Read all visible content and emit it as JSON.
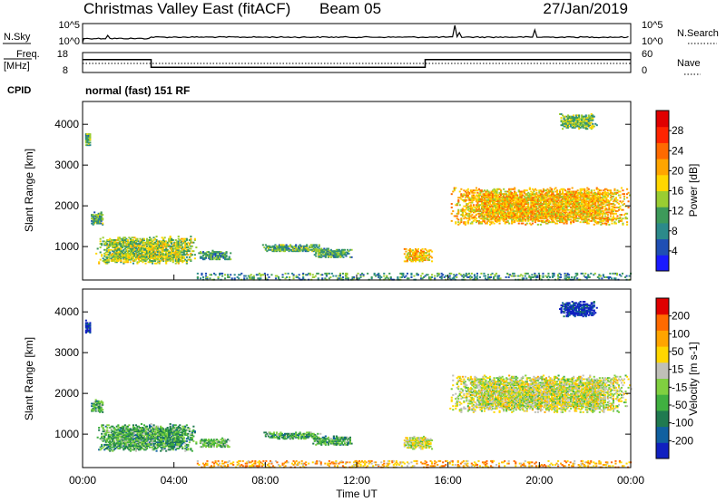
{
  "header": {
    "station": "Christmas Valley East (fitACF)",
    "beam": "Beam 05",
    "date": "27/Jan/2019"
  },
  "noise_panel": {
    "left_label": "N.Sky",
    "right_label": "N.Search",
    "left_ticks": [
      "10^5",
      "10^0"
    ],
    "right_ticks": [
      "10^5",
      "10^0"
    ]
  },
  "freq_panel": {
    "left_label": "Freq.",
    "left_unit": "[MHz]",
    "right_label": "Nave",
    "left_ticks": [
      "18",
      "8"
    ],
    "right_ticks": [
      "60",
      "0"
    ],
    "freq_steps": [
      {
        "t0": 0.0,
        "t1": 3.0,
        "mhz": 14.5
      },
      {
        "t0": 3.0,
        "t1": 15.0,
        "mhz": 10.6
      },
      {
        "t0": 15.0,
        "t1": 24.0,
        "mhz": 14.5
      }
    ],
    "nave_level": 35
  },
  "cpid": {
    "label": "CPID",
    "text": "normal (fast) 151 RF"
  },
  "time_axis": {
    "ticks": [
      "00:00",
      "04:00",
      "08:00",
      "12:00",
      "16:00",
      "20:00",
      "00:00"
    ],
    "title": "Time UT"
  },
  "chart_data": [
    {
      "type": "heatmap",
      "id": "power",
      "ylabel": "Slant Range [km]",
      "yticks": [
        "1000",
        "2000",
        "3000",
        "4000"
      ],
      "ylim": [
        180,
        4560
      ],
      "xlim": [
        0,
        24
      ],
      "colorbar": {
        "label": "Power [dB]",
        "ticks": [
          "4",
          "8",
          "12",
          "16",
          "20",
          "24",
          "28"
        ],
        "colors": [
          "#1a1aff",
          "#1f4fb4",
          "#2c8a8a",
          "#3d9a5a",
          "#9acd32",
          "#ffd700",
          "#ffa500",
          "#ff6a00",
          "#ff2400",
          "#e00000"
        ]
      },
      "regions": [
        {
          "t0": 0.05,
          "t1": 0.35,
          "r0": 3450,
          "r1": 3800,
          "level": 0.35
        },
        {
          "t0": 0.3,
          "t1": 0.9,
          "r0": 1500,
          "r1": 1850,
          "level": 0.35
        },
        {
          "t0": 0.5,
          "t1": 5.0,
          "r0": 550,
          "r1": 1250,
          "level": 0.45
        },
        {
          "t0": 5.0,
          "t1": 6.5,
          "r0": 650,
          "r1": 900,
          "level": 0.3
        },
        {
          "t0": 7.8,
          "t1": 10.5,
          "r0": 850,
          "r1": 1050,
          "level": 0.35
        },
        {
          "t0": 10.0,
          "t1": 11.8,
          "r0": 700,
          "r1": 950,
          "level": 0.35
        },
        {
          "t0": 14.0,
          "t1": 15.3,
          "r0": 600,
          "r1": 950,
          "level": 0.6
        },
        {
          "t0": 16.0,
          "t1": 24.0,
          "r0": 1500,
          "r1": 2450,
          "level": 0.6
        },
        {
          "t0": 20.8,
          "t1": 22.5,
          "r0": 3850,
          "r1": 4250,
          "level": 0.4
        },
        {
          "t0": 5.0,
          "t1": 24.0,
          "r0": 180,
          "r1": 360,
          "level": 0.3
        }
      ]
    },
    {
      "type": "heatmap",
      "id": "velocity",
      "ylabel": "Slant Range [km]",
      "yticks": [
        "1000",
        "2000",
        "3000",
        "4000"
      ],
      "ylim": [
        180,
        4560
      ],
      "xlim": [
        0,
        24
      ],
      "colorbar": {
        "label": "Velocity [m s-1]",
        "ticks": [
          "200",
          "100",
          "50",
          "15",
          "-15",
          "-50",
          "-100",
          "-200"
        ],
        "colors": [
          "#1020c0",
          "#1060a0",
          "#207a50",
          "#40b040",
          "#80d040",
          "#c0c0b8",
          "#ffd700",
          "#ffa500",
          "#ff6a00",
          "#e00000"
        ]
      },
      "regions": [
        {
          "t0": 0.05,
          "t1": 0.35,
          "r0": 3450,
          "r1": 3800,
          "level": 0.05
        },
        {
          "t0": 0.3,
          "t1": 0.9,
          "r0": 1500,
          "r1": 1850,
          "level": 0.35
        },
        {
          "t0": 0.5,
          "t1": 5.0,
          "r0": 550,
          "r1": 1250,
          "level": 0.35
        },
        {
          "t0": 5.0,
          "t1": 6.5,
          "r0": 650,
          "r1": 900,
          "level": 0.4
        },
        {
          "t0": 7.8,
          "t1": 10.5,
          "r0": 850,
          "r1": 1050,
          "level": 0.35
        },
        {
          "t0": 10.0,
          "t1": 11.8,
          "r0": 700,
          "r1": 950,
          "level": 0.35
        },
        {
          "t0": 14.0,
          "t1": 15.3,
          "r0": 600,
          "r1": 950,
          "level": 0.55
        },
        {
          "t0": 16.0,
          "t1": 24.0,
          "r0": 1500,
          "r1": 2450,
          "level": 0.55
        },
        {
          "t0": 20.8,
          "t1": 22.5,
          "r0": 3850,
          "r1": 4250,
          "level": 0.05
        },
        {
          "t0": 5.0,
          "t1": 24.0,
          "r0": 180,
          "r1": 360,
          "level": 0.72
        }
      ]
    }
  ]
}
